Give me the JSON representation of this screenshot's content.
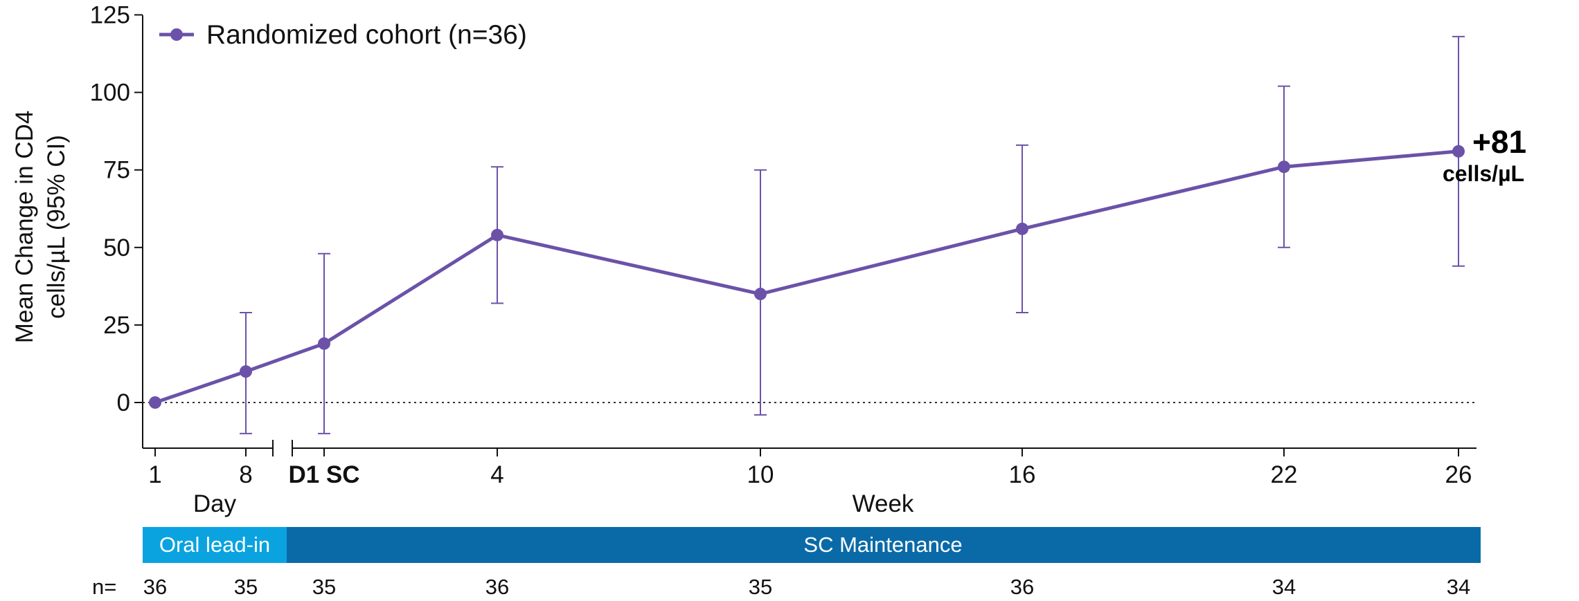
{
  "chart_data": {
    "type": "line",
    "ylabel_line1": "Mean Change in CD4",
    "ylabel_line2": "cells/µL (95% CI)",
    "ylim": [
      -15,
      125
    ],
    "yticks": [
      0,
      25,
      50,
      75,
      100,
      125
    ],
    "grid": false,
    "reference_line": 0,
    "legend_position": "top-left",
    "series": [
      {
        "name": "Randomized cohort (n=36)",
        "color": "#6B52A8",
        "points": [
          {
            "x_label": "1",
            "y": 0,
            "ci_low": 0,
            "ci_high": 0
          },
          {
            "x_label": "8",
            "y": 10,
            "ci_low": -10,
            "ci_high": 29
          },
          {
            "x_label": "D1 SC",
            "y": 19,
            "ci_low": -10,
            "ci_high": 48
          },
          {
            "x_label": "4",
            "y": 54,
            "ci_low": 32,
            "ci_high": 76
          },
          {
            "x_label": "10",
            "y": 35,
            "ci_low": -4,
            "ci_high": 75
          },
          {
            "x_label": "16",
            "y": 56,
            "ci_low": 29,
            "ci_high": 83
          },
          {
            "x_label": "22",
            "y": 76,
            "ci_low": 50,
            "ci_high": 102
          },
          {
            "x_label": "26",
            "y": 81,
            "ci_low": 44,
            "ci_high": 118
          }
        ]
      }
    ],
    "x_group_labels": {
      "day": "Day",
      "week": "Week"
    },
    "end_annotation": {
      "value": "+81",
      "unit": "cells/µL"
    },
    "phases": [
      {
        "label": "Oral lead-in",
        "color": "#0AA3E0"
      },
      {
        "label": "SC Maintenance",
        "color": "#0A6AA8"
      }
    ],
    "n_row": {
      "label": "n=",
      "values": [
        "36",
        "35",
        "35",
        "36",
        "35",
        "36",
        "34",
        "34"
      ]
    }
  }
}
